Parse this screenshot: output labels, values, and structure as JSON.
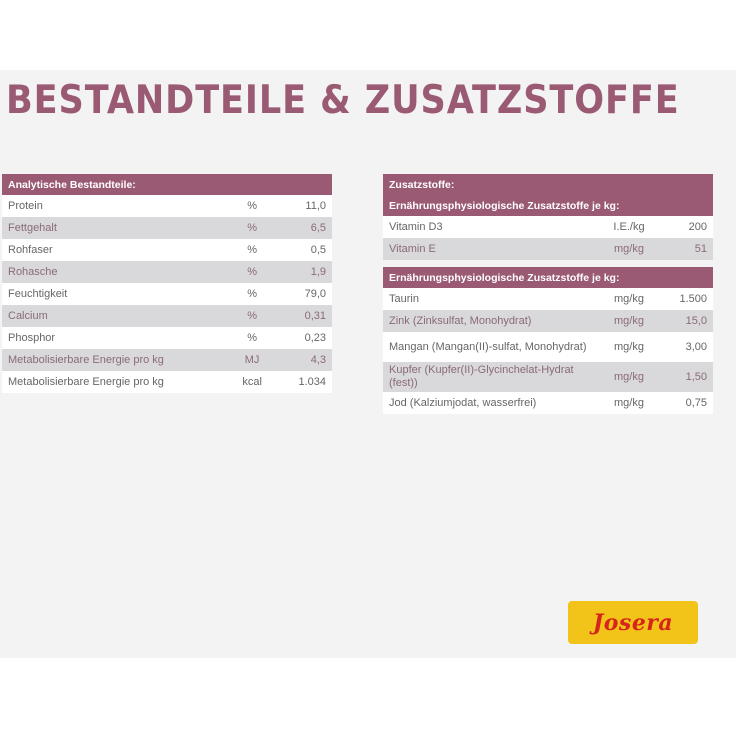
{
  "title": "BESTANDTEILE & ZUSATZSTOFFE",
  "analytical": {
    "header": "Analytische Bestandteile:",
    "rows": [
      {
        "name": "Protein",
        "unit": "%",
        "value": "11,0"
      },
      {
        "name": "Fettgehalt",
        "unit": "%",
        "value": "6,5"
      },
      {
        "name": "Rohfaser",
        "unit": "%",
        "value": "0,5"
      },
      {
        "name": "Rohasche",
        "unit": "%",
        "value": "1,9"
      },
      {
        "name": "Feuchtigkeit",
        "unit": "%",
        "value": "79,0"
      },
      {
        "name": "Calcium",
        "unit": "%",
        "value": "0,31"
      },
      {
        "name": "Phosphor",
        "unit": "%",
        "value": "0,23"
      },
      {
        "name": "Metabolisierbare Energie pro kg",
        "unit": "MJ",
        "value": "4,3"
      },
      {
        "name": "Metabolisierbare Energie pro kg",
        "unit": "kcal",
        "value": "1.034"
      }
    ]
  },
  "additives": {
    "header": "Zusatzstoffe:",
    "group1": {
      "header": "Ernährungsphysiologische Zusatzstoffe je kg:",
      "rows": [
        {
          "name": "Vitamin D3",
          "unit": "I.E./kg",
          "value": "200"
        },
        {
          "name": "Vitamin E",
          "unit": "mg/kg",
          "value": "51"
        }
      ]
    },
    "group2": {
      "header": "Ernährungsphysiologische Zusatzstoffe je kg:",
      "rows": [
        {
          "name": "Taurin",
          "unit": "mg/kg",
          "value": "1.500"
        },
        {
          "name": "Zink (Zinksulfat, Monohydrat)",
          "unit": "mg/kg",
          "value": "15,0"
        },
        {
          "name": "Mangan (Mangan(II)-sulfat, Monohydrat)",
          "unit": "mg/kg",
          "value": "3,00"
        },
        {
          "name": "Kupfer (Kupfer(II)-Glycinchelat-Hydrat (fest))",
          "unit": "mg/kg",
          "value": "1,50"
        },
        {
          "name": "Jod (Kalziumjodat, wasserfrei)",
          "unit": "mg/kg",
          "value": "0,75"
        }
      ]
    }
  },
  "logo": {
    "text": "Josera"
  },
  "colors": {
    "accent": "#9b5a73",
    "logo_bg": "#f2c318",
    "logo_text": "#d6261c"
  }
}
